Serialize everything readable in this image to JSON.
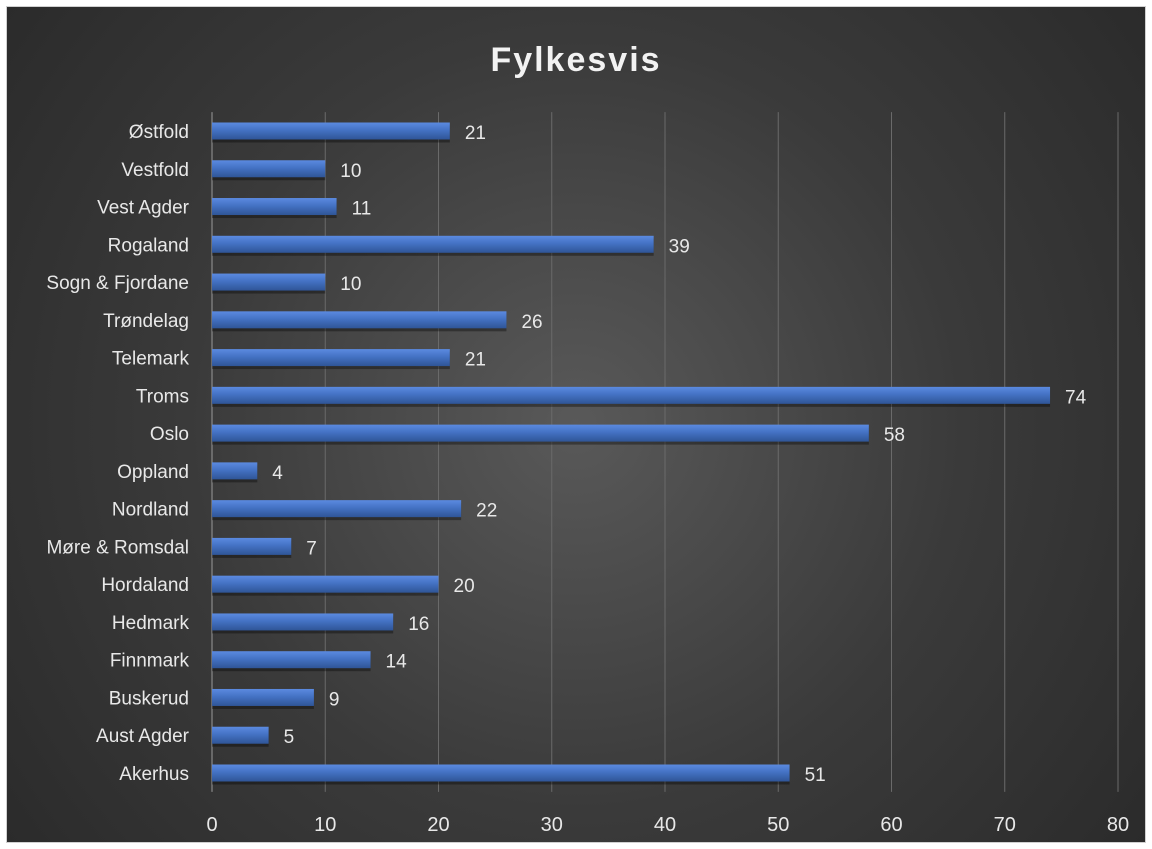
{
  "chart_data": {
    "type": "bar",
    "orientation": "horizontal",
    "title": "Fylkesvis",
    "categories": [
      "Østfold",
      "Vestfold",
      "Vest Agder",
      "Rogaland",
      "Sogn & Fjordane",
      "Trøndelag",
      "Telemark",
      "Troms",
      "Oslo",
      "Oppland",
      "Nordland",
      "Møre & Romsdal",
      "Hordaland",
      "Hedmark",
      "Finnmark",
      "Buskerud",
      "Aust Agder",
      "Akerhus"
    ],
    "values": [
      21,
      10,
      11,
      39,
      10,
      26,
      21,
      74,
      58,
      4,
      22,
      7,
      20,
      16,
      14,
      9,
      5,
      51
    ],
    "xlim": [
      0,
      80
    ],
    "xticks": [
      0,
      10,
      20,
      30,
      40,
      50,
      60,
      70,
      80
    ],
    "xlabel": "",
    "ylabel": "",
    "grid": "vertical",
    "legend": "none",
    "data_labels": true,
    "colors": {
      "bar": "#4472c4",
      "bar_light": "#5b8ae0",
      "bar_dark": "#2f5597",
      "text": "#e8e8e8",
      "grid": "#6a6a6a",
      "axis": "#9a9a9a"
    }
  }
}
